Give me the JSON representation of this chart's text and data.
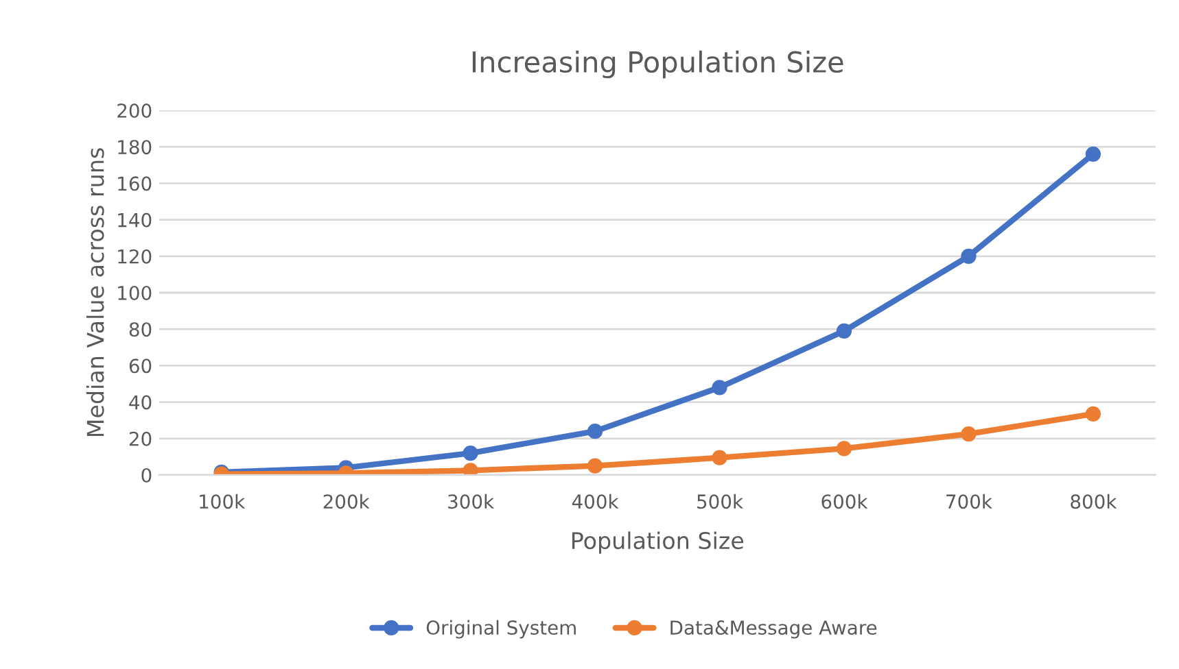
{
  "chart_data": {
    "type": "line",
    "title": "Increasing Population Size",
    "xlabel": "Population Size",
    "ylabel": "Median Value across runs",
    "categories": [
      "100k",
      "200k",
      "300k",
      "400k",
      "500k",
      "600k",
      "700k",
      "800k"
    ],
    "series": [
      {
        "name": "Original System",
        "color": "#4472c4",
        "values": [
          1.5,
          4,
          12,
          24,
          48,
          79,
          120,
          176
        ]
      },
      {
        "name": "Data&Message Aware",
        "color": "#ed7d31",
        "values": [
          0.5,
          1,
          2.5,
          5,
          9.5,
          14.5,
          22.5,
          33.5
        ]
      }
    ],
    "ylim": [
      0,
      200
    ],
    "yticks": [
      0,
      20,
      40,
      60,
      80,
      100,
      120,
      140,
      160,
      180,
      200
    ],
    "grid": "y",
    "legend": "bottom",
    "marker": "circle",
    "line_style": "solid"
  }
}
